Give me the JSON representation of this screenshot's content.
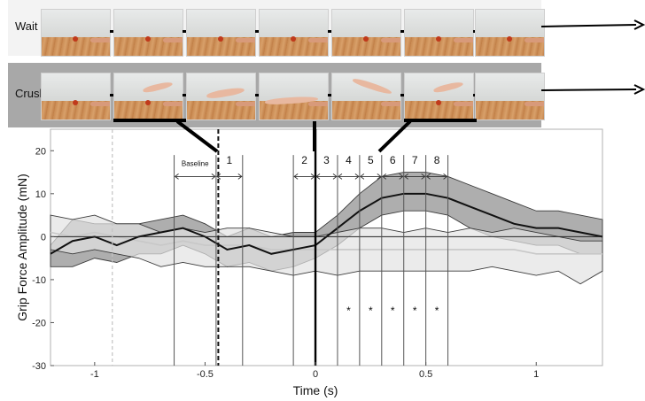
{
  "panels": [
    {
      "label": "Wait",
      "frames": [
        "ball",
        "ball",
        "ball",
        "ball",
        "ball",
        "ball",
        "ball"
      ]
    },
    {
      "label": "Crush",
      "frames": [
        "ball",
        "ball-high",
        "hand-mid",
        "hand-low",
        "hand-rise",
        "ball-high",
        "empty"
      ]
    }
  ],
  "chart_data": {
    "type": "line",
    "title": "",
    "xlabel": "Time (s)",
    "ylabel": "Grip Force Amplitude (mN)",
    "xlim": [
      -1.2,
      1.3
    ],
    "ylim": [
      -30,
      25
    ],
    "xticks": [
      -1,
      -0.5,
      0,
      0.5,
      1
    ],
    "xtick_labels": [
      "-1",
      "-0.5",
      "0",
      "0.5",
      "1"
    ],
    "yticks": [
      -30,
      -20,
      -10,
      0,
      10,
      20
    ],
    "ytick_labels": [
      "-30",
      "-20",
      "-10",
      "0",
      "10",
      "20"
    ],
    "legend": "none",
    "grid": false,
    "baseline_label": "Baseline",
    "window_boundaries": [
      -0.64,
      -0.45,
      -0.33,
      -0.1,
      0,
      0.1,
      0.2,
      0.3,
      0.4,
      0.5,
      0.6
    ],
    "windows": [
      {
        "label": "Baseline",
        "start": -0.64,
        "end": -0.45
      },
      {
        "label": "1",
        "start": -0.45,
        "end": -0.33
      },
      {
        "label": "2",
        "start": -0.1,
        "end": 0
      },
      {
        "label": "3",
        "start": 0,
        "end": 0.1
      },
      {
        "label": "4",
        "start": 0.1,
        "end": 0.2
      },
      {
        "label": "5",
        "start": 0.2,
        "end": 0.3
      },
      {
        "label": "6",
        "start": 0.3,
        "end": 0.4
      },
      {
        "label": "7",
        "start": 0.4,
        "end": 0.5
      },
      {
        "label": "8",
        "start": 0.5,
        "end": 0.6
      }
    ],
    "significance_marks": {
      "symbol": "*",
      "y": -17,
      "x": [
        0.15,
        0.25,
        0.35,
        0.45,
        0.55
      ]
    },
    "event_lines": [
      {
        "x": -0.92,
        "style": "dashed-light"
      },
      {
        "x": -0.44,
        "style": "dashed-dark"
      },
      {
        "x": 0,
        "style": "solid-thick"
      }
    ],
    "series": [
      {
        "color": "#111111",
        "band_color": "#8c8c8c",
        "x": [
          -1.2,
          -1.1,
          -1.0,
          -0.9,
          -0.8,
          -0.7,
          -0.6,
          -0.5,
          -0.4,
          -0.3,
          -0.2,
          -0.1,
          0,
          0.1,
          0.2,
          0.3,
          0.4,
          0.5,
          0.6,
          0.7,
          0.8,
          0.9,
          1.0,
          1.1,
          1.2,
          1.3
        ],
        "mean": [
          -4,
          -1,
          0,
          -2,
          0,
          1,
          2,
          0,
          -3,
          -2,
          -4,
          -3,
          -2,
          2,
          6,
          9,
          10,
          10,
          9,
          7,
          5,
          3,
          2,
          2,
          1,
          0
        ],
        "lower": [
          -7,
          -7,
          -5,
          -6,
          -4,
          -4,
          -2,
          -4,
          -7,
          -6,
          -8,
          -7,
          -5,
          -2,
          2,
          5,
          6,
          6,
          5,
          2,
          0,
          -1,
          -2,
          -2,
          -4,
          -4
        ],
        "upper": [
          -2,
          4,
          3,
          3,
          3,
          4,
          5,
          3,
          0,
          2,
          0,
          1,
          1,
          5,
          10,
          14,
          15,
          15,
          14,
          12,
          10,
          8,
          6,
          6,
          5,
          4
        ]
      },
      {
        "color": "#c8c8c8",
        "band_color": "#e2e2e2",
        "x": [
          -1.2,
          -1.1,
          -1.0,
          -0.9,
          -0.8,
          -0.7,
          -0.6,
          -0.5,
          -0.4,
          -0.3,
          -0.2,
          -0.1,
          0,
          0.1,
          0.2,
          0.3,
          0.4,
          0.5,
          0.6,
          0.7,
          0.8,
          0.9,
          1.0,
          1.1,
          1.2,
          1.3
        ],
        "mean": [
          1,
          0,
          1,
          0,
          -1,
          -2,
          -1,
          -2,
          -2,
          -2,
          -3,
          -3,
          -3,
          -3,
          -3,
          -3,
          -3,
          -3,
          -3,
          -3,
          -3,
          -3,
          -4,
          -4,
          -4,
          -4
        ],
        "lower": [
          -3,
          -4,
          -3,
          -4,
          -5,
          -7,
          -6,
          -7,
          -7,
          -7,
          -8,
          -9,
          -8,
          -9,
          -8,
          -8,
          -8,
          -8,
          -8,
          -8,
          -7,
          -8,
          -9,
          -8,
          -11,
          -8
        ],
        "upper": [
          5,
          4,
          5,
          3,
          3,
          1,
          2,
          1,
          2,
          2,
          1,
          0,
          0,
          1,
          2,
          2,
          1,
          2,
          1,
          2,
          1,
          2,
          1,
          0,
          -1,
          -1
        ]
      }
    ]
  }
}
